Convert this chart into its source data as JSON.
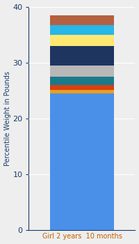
{
  "category": "Girl 2 years  10 months",
  "segments": [
    {
      "value": 24.5,
      "color": "#4a90e8"
    },
    {
      "value": 0.6,
      "color": "#e8a020"
    },
    {
      "value": 0.8,
      "color": "#d94010"
    },
    {
      "value": 1.5,
      "color": "#1a7a8a"
    },
    {
      "value": 2.0,
      "color": "#b8b8b8"
    },
    {
      "value": 3.5,
      "color": "#1e3560"
    },
    {
      "value": 2.0,
      "color": "#ffe870"
    },
    {
      "value": 1.8,
      "color": "#29b6e8"
    },
    {
      "value": 1.8,
      "color": "#b56040"
    }
  ],
  "ylabel": "Percentile Weight in Pounds",
  "ylim": [
    0,
    40
  ],
  "yticks": [
    0,
    10,
    20,
    30,
    40
  ],
  "background_color": "#eeeeee",
  "axis_color": "#1a3a6b",
  "tick_color": "#1a3a6b",
  "xlabel_color": "#c06000",
  "bar_width": 0.6
}
